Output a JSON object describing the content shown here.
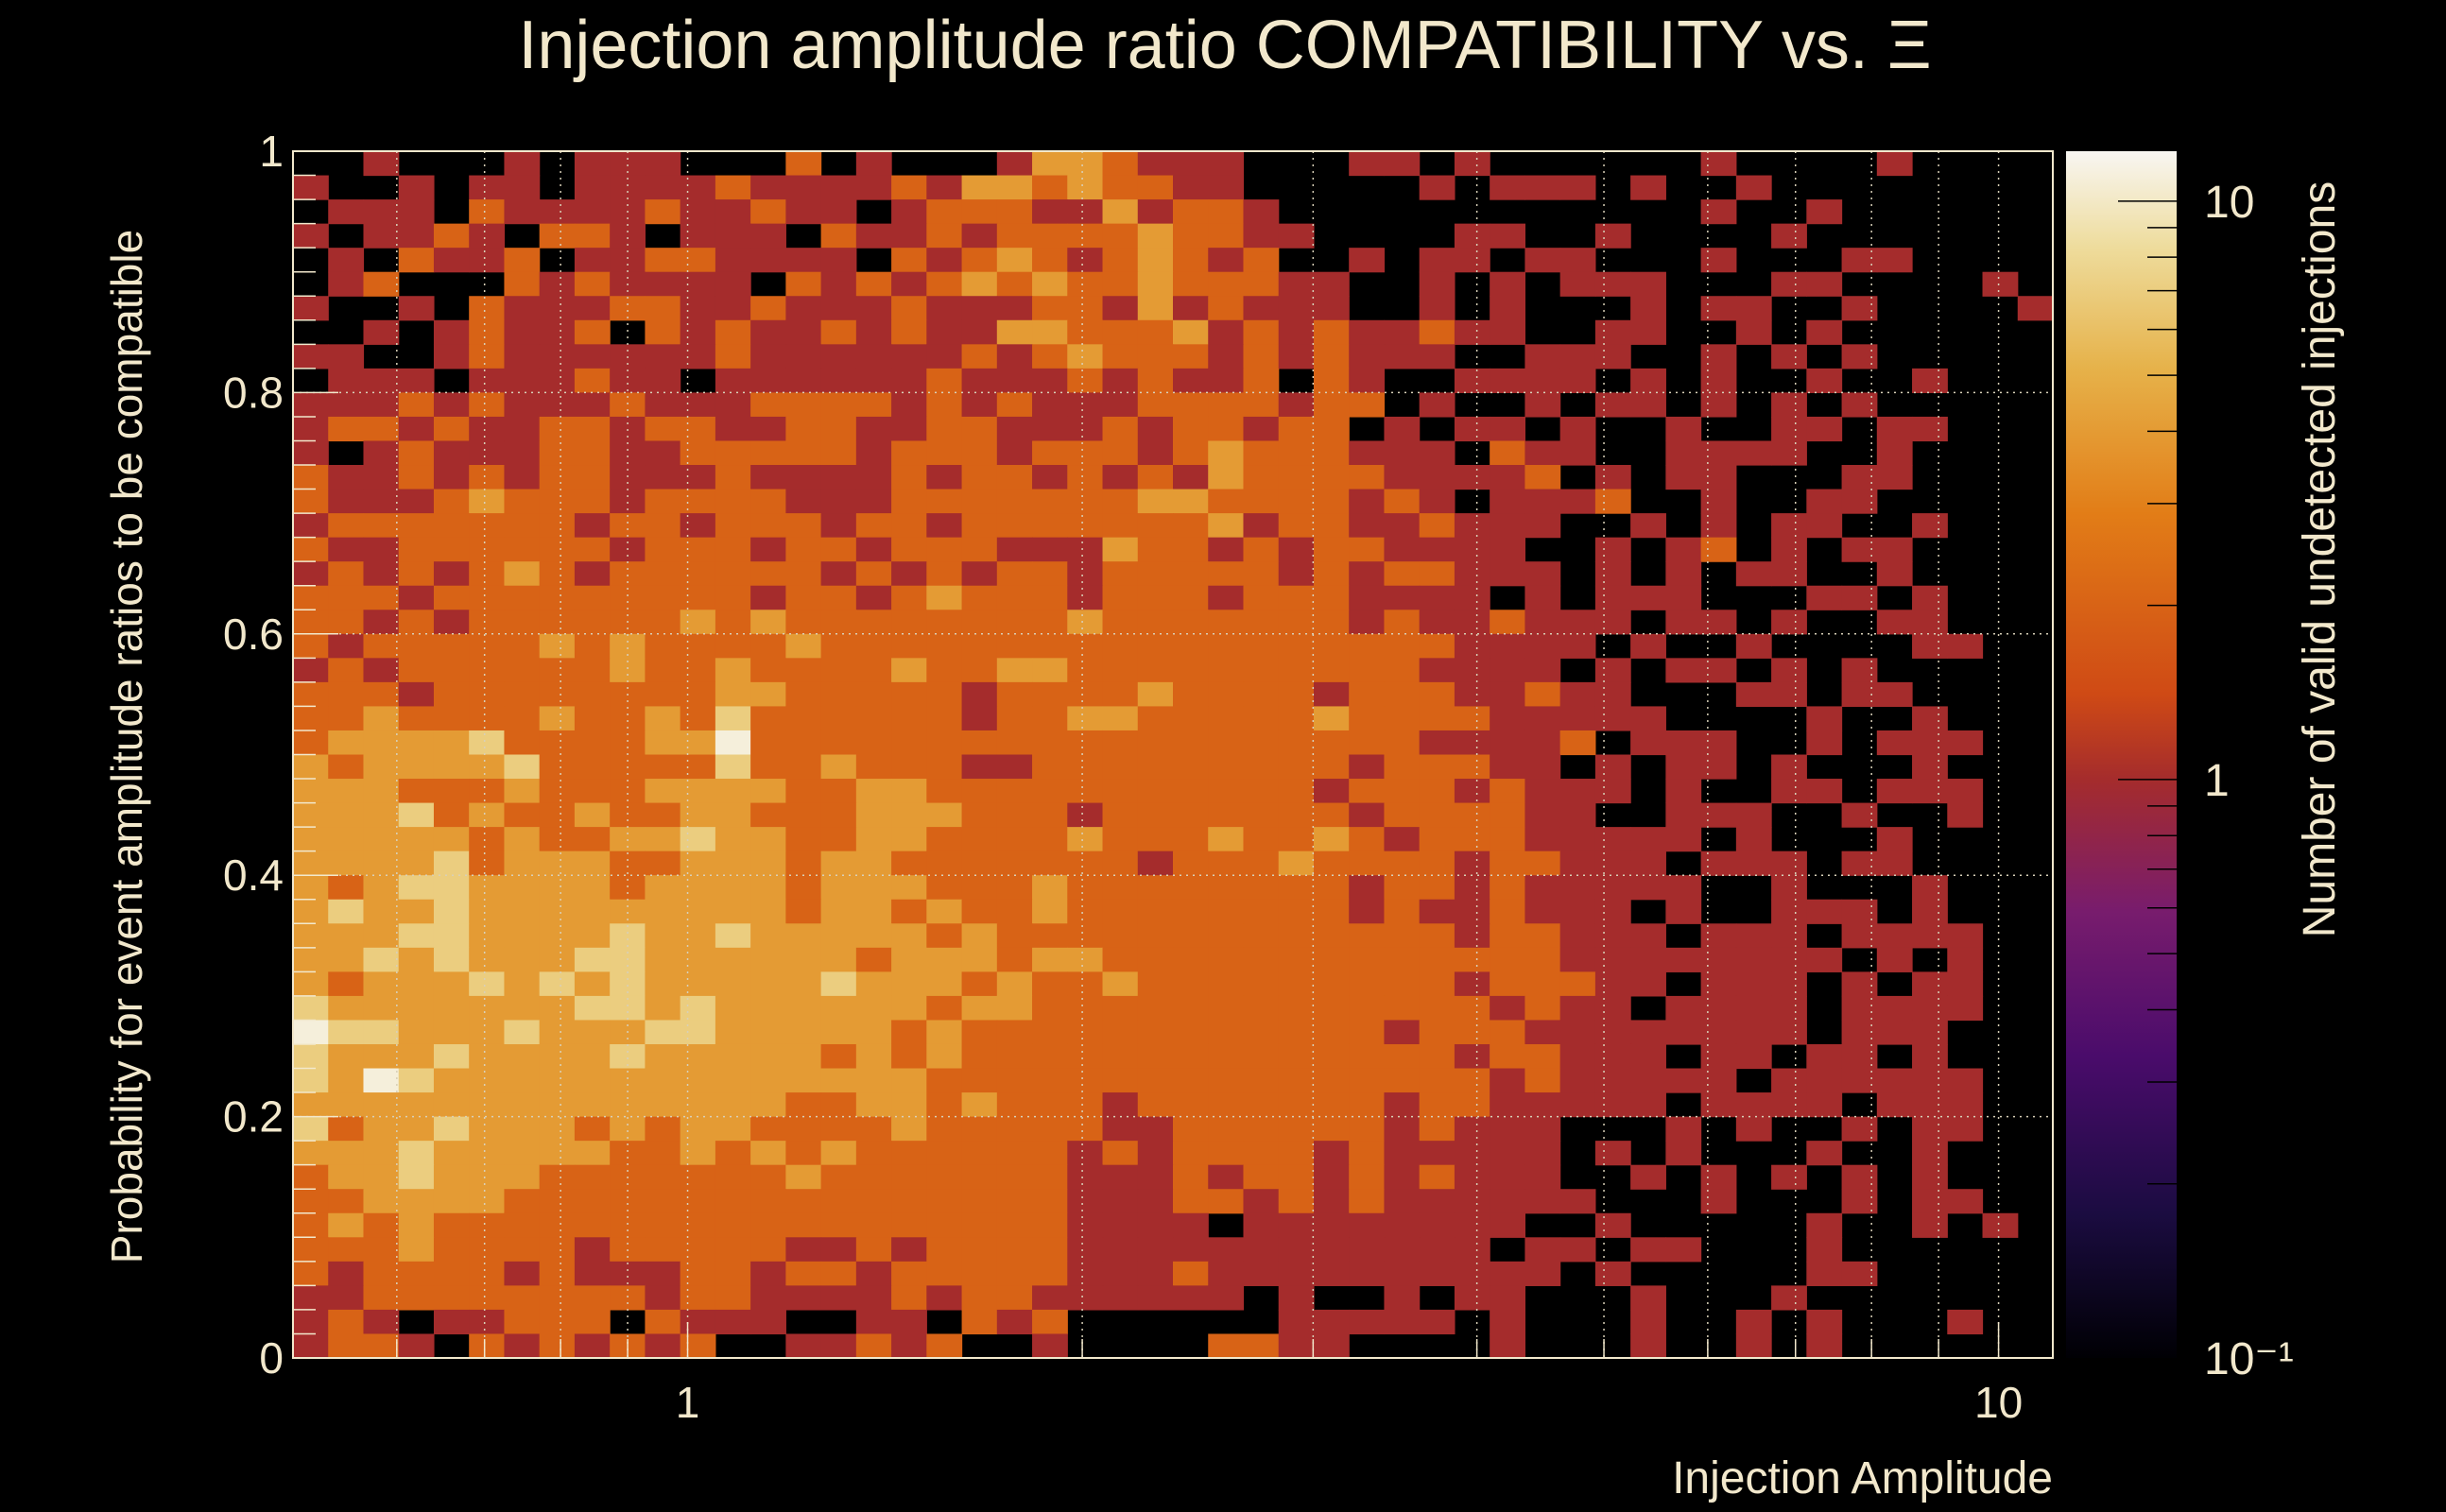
{
  "chart_data": {
    "type": "heatmap",
    "title": "Injection amplitude ratio COMPATIBILITY vs.  Ξ",
    "xlabel": "Injection Amplitude",
    "ylabel": "Probability for event amplitude ratios to be compatible",
    "zlabel": "Number of valid undetected injections",
    "x_scale": "log",
    "xlim": [
      0.5,
      11
    ],
    "ylim": [
      0,
      1
    ],
    "zlim": [
      0.1,
      12.2
    ],
    "z_scale": "log",
    "x_tick_labels": [
      "1",
      "10"
    ],
    "x_tick_values": [
      1,
      10
    ],
    "y_tick_labels": [
      "0",
      "0.2",
      "0.4",
      "0.6",
      "0.8",
      "1"
    ],
    "y_tick_values": [
      0,
      0.2,
      0.4,
      0.6,
      0.8,
      1
    ],
    "z_tick_labels": [
      "10⁻¹",
      "1",
      "10"
    ],
    "z_tick_values": [
      0.1,
      1,
      10
    ],
    "grid": true,
    "n_xbins": 50,
    "n_ybins": 50,
    "level_counts": [
      0,
      1,
      2,
      4,
      7,
      11
    ],
    "rows_top_to_bottom_levels": [
      "00100010111000201000133211100011010000001000010000",
      "10010110111121111213323221100000101110100100000000",
      "01110211112112110122211312210000000000001001000000",
      "10112102210111021121222232211000011001000010000000",
      "01021120112211110212321232120010110110001000110000",
      "01200021211110212123232232221100101011100011000010",
      "10010211122112111211122131211100101000101100100001",
      "00101211202121121211332223121211211001100101000000",
      "11001211111121111112123222121211100111001010100000",
      "01110111211011111121112121120210011110101001001000",
      "11121211121112222121211122221220100101101010100000",
      "12212112212211221122111212212201011010010011011000",
      "10121112211222221222122212322211102110011110010000",
      "21121212211121111212212121322221111201011000110000",
      "21112322212222111222222233222212101112001001100000",
      "12222222122122212212222222312211211100101011001000",
      "21122222212221221222111322121221111001012010110000",
      "12121232122222212121221222221212211101010110010000",
      "22212222222221221232221222122211110101110001101000",
      "22121222222323222222223222222212112111011010011000",
      "21222223232222322222222222222222211110100100001100",
      "12122222232232222322332222222222111101011010100000",
      "22212222222233222221222232222122211211000110110000",
      "22322223223242222221223322222322221111100001001000",
      "23333422223352222222222222222222111120111001011100",
      "32333342222242232221122222222212221101011010001000",
      "33322232223333223322222222222122212111010011011100",
      "33342322322332223332221222222212222110011100100100",
      "33333232233433223322223222322321222111110100010000",
      "33334233322333233222222212223222212211101110110000",
      "32344333323333233322232222222212212111110010001000",
      "34334333333333233232232222222212112111010011101000",
      "33344333343343333323222222222222212211101110111100",
      "33434333443333332333233222222222222211111111010100",
      "32333434343333343332322322222222212221101110101100",
      "43333333443433333323322222222222221211011110111100",
      "54433343334433333232222222222221222111111110111000",
      "43334333343333323232222222222222212211101101101000",
      "43543333333333333322222222222222221211111011111100",
      "33333333333333223323222122222221221111101111011100",
      "42334333232332222322222112222221211100010100101100",
      "33343333322323232222221212222121111101010001001000",
      "23343332222222322222221112122121211100101010101000",
      "22333322222222222222221112212121111110001000101100",
      "23232222222222222222221111011111111001000001001010",
      "22232222122222112122221111111111110110110001000000",
      "21222212111221221222221112111111111101000001100000",
      "11222222221221111212211111101001011000100010000000",
      "12101122202111001102120000001111101000100101000100",
      "12210212121200112120010000221100001000100101000000"
    ],
    "colors": {
      "background": "#000000",
      "text": "#f2e8cc",
      "grid": "#d8d0b8"
    }
  }
}
